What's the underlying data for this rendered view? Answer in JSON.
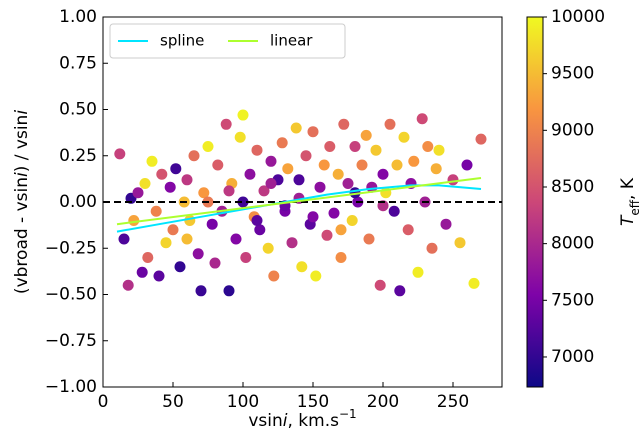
{
  "chart_data": {
    "type": "scatter",
    "xlabel": [
      "vsin",
      "i",
      ", km.s",
      "−1"
    ],
    "ylabel": [
      "(vbroad - vsin",
      "i",
      ") / vsin",
      "i"
    ],
    "xlim": [
      0,
      285
    ],
    "ylim": [
      -1,
      1
    ],
    "xticks": [
      0,
      50,
      100,
      150,
      200,
      250
    ],
    "yticks": [
      {
        "value": -1,
        "label": "−1.00"
      },
      {
        "value": -0.75,
        "label": "−0.75"
      },
      {
        "value": -0.5,
        "label": "−0.50"
      },
      {
        "value": -0.25,
        "label": "−0.25"
      },
      {
        "value": 0,
        "label": "0.00"
      },
      {
        "value": 0.25,
        "label": "0.25"
      },
      {
        "value": 0.5,
        "label": "0.50"
      },
      {
        "value": 0.75,
        "label": "0.75"
      },
      {
        "value": 1,
        "label": "1.00"
      }
    ],
    "hline": 0,
    "colormap": "plasma",
    "clim": [
      6735,
      10000
    ],
    "cticks": [
      7000,
      7500,
      8000,
      8500,
      9000,
      9500,
      10000
    ],
    "colorbar_label": [
      "T",
      "eff",
      ", K"
    ],
    "points": {
      "x": [
        12,
        15,
        18,
        20,
        22,
        25,
        28,
        30,
        32,
        35,
        38,
        40,
        42,
        45,
        48,
        50,
        52,
        55,
        58,
        60,
        62,
        65,
        68,
        70,
        72,
        75,
        78,
        80,
        82,
        85,
        88,
        90,
        92,
        95,
        98,
        100,
        102,
        105,
        108,
        110,
        112,
        115,
        118,
        120,
        122,
        125,
        128,
        130,
        132,
        135,
        138,
        140,
        142,
        145,
        148,
        150,
        152,
        155,
        158,
        160,
        162,
        165,
        168,
        170,
        172,
        175,
        178,
        180,
        182,
        185,
        188,
        190,
        192,
        195,
        198,
        200,
        202,
        205,
        208,
        210,
        212,
        215,
        218,
        220,
        222,
        225,
        228,
        230,
        232,
        235,
        238,
        240,
        245,
        250,
        255,
        260,
        265,
        270,
        100,
        130,
        150,
        90,
        110,
        75,
        60,
        200,
        180,
        170,
        120,
        140
      ],
      "values": [
        0.26,
        -0.2,
        -0.45,
        0.02,
        -0.1,
        0.05,
        -0.38,
        0.1,
        -0.3,
        0.22,
        -0.05,
        -0.4,
        0.15,
        -0.22,
        0.08,
        -0.15,
        0.18,
        -0.35,
        0.0,
        0.12,
        -0.1,
        0.25,
        -0.28,
        -0.48,
        0.05,
        0.3,
        -0.12,
        -0.33,
        0.2,
        -0.05,
        0.42,
        -0.48,
        0.1,
        -0.2,
        0.35,
        0.47,
        -0.3,
        0.15,
        -0.08,
        0.28,
        -0.15,
        0.06,
        -0.25,
        0.22,
        -0.4,
        0.12,
        0.32,
        -0.05,
        0.18,
        -0.22,
        0.4,
        0.02,
        -0.35,
        0.25,
        -0.12,
        0.38,
        -0.4,
        0.08,
        0.2,
        -0.18,
        0.3,
        -0.06,
        0.15,
        -0.3,
        0.42,
        0.1,
        -0.1,
        0.3,
        0.0,
        0.2,
        0.36,
        -0.2,
        0.08,
        0.28,
        -0.45,
        0.15,
        0.05,
        0.42,
        -0.05,
        0.2,
        -0.48,
        0.35,
        -0.15,
        0.1,
        0.22,
        -0.38,
        0.45,
        0.0,
        0.3,
        -0.25,
        0.18,
        0.28,
        -0.12,
        0.12,
        -0.22,
        0.2,
        -0.44,
        0.34,
        0.0,
        -0.02,
        -0.08,
        0.06,
        -0.1,
        0.0,
        -0.2,
        -0.02,
        0.05,
        -0.15,
        0.1,
        0.12
      ],
      "c": [
        8300,
        7200,
        8100,
        7000,
        9300,
        7800,
        7400,
        9800,
        8700,
        9900,
        9000,
        7300,
        8500,
        9700,
        7600,
        8900,
        7100,
        7000,
        9500,
        8200,
        9600,
        8800,
        7700,
        7050,
        9200,
        9900,
        7500,
        8000,
        8600,
        7900,
        8400,
        6950,
        9400,
        7600,
        9800,
        9950,
        8300,
        7700,
        9100,
        8700,
        7400,
        8200,
        9700,
        7800,
        9000,
        7200,
        8900,
        7500,
        9300,
        8100,
        9600,
        7900,
        9800,
        8500,
        7300,
        8800,
        9900,
        7700,
        9200,
        8400,
        8600,
        7600,
        9400,
        9100,
        8700,
        7900,
        9700,
        8300,
        7500,
        9000,
        9300,
        8900,
        7800,
        9600,
        8400,
        7600,
        9800,
        8800,
        7200,
        9500,
        7300,
        9700,
        8600,
        7700,
        9200,
        9900,
        8400,
        7900,
        9100,
        8800,
        9400,
        9800,
        7800,
        8300,
        9600,
        7500,
        9900,
        8700,
        7100,
        7400,
        7600,
        8200,
        7300,
        8900,
        9500,
        8100,
        7000,
        9300,
        7900,
        7200
      ]
    },
    "series": [
      {
        "name": "spline",
        "color": "#00e5ff",
        "x": [
          10,
          40,
          70,
          100,
          130,
          160,
          190,
          220,
          240,
          270
        ],
        "values": [
          -0.16,
          -0.12,
          -0.08,
          -0.04,
          0.0,
          0.04,
          0.07,
          0.09,
          0.09,
          0.07
        ]
      },
      {
        "name": "linear",
        "color": "#adff2f",
        "x": [
          10,
          270
        ],
        "values": [
          -0.12,
          0.13
        ]
      }
    ],
    "legend": "upper left"
  }
}
